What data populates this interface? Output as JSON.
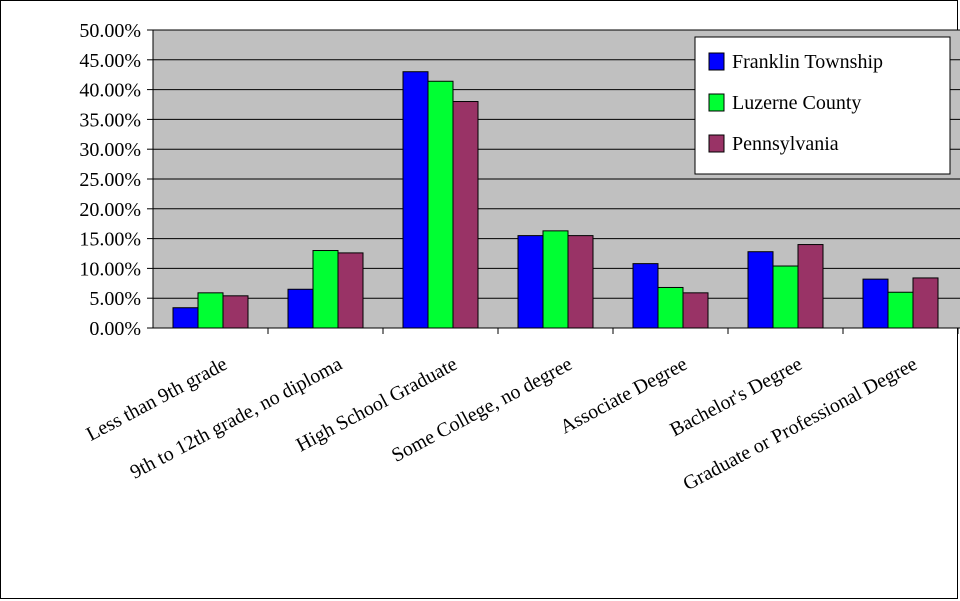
{
  "chart_data": {
    "type": "bar",
    "title": "",
    "xlabel": "",
    "ylabel": "",
    "ylim": [
      0,
      0.5
    ],
    "y_ticks": [
      "0.00%",
      "5.00%",
      "10.00%",
      "15.00%",
      "20.00%",
      "25.00%",
      "30.00%",
      "35.00%",
      "40.00%",
      "45.00%",
      "50.00%"
    ],
    "grid": true,
    "legend_position": "top-right",
    "categories": [
      "Less than 9th grade",
      "9th to 12th grade, no diploma",
      "High School Graduate",
      "Some College, no degree",
      "Associate Degree",
      "Bachelor's Degree",
      "Graduate or Professional Degree"
    ],
    "series": [
      {
        "name": "Franklin Township",
        "color": "#0000ff",
        "values": [
          0.034,
          0.065,
          0.43,
          0.155,
          0.108,
          0.128,
          0.082
        ]
      },
      {
        "name": "Luzerne County",
        "color": "#00ff33",
        "values": [
          0.059,
          0.13,
          0.414,
          0.163,
          0.068,
          0.104,
          0.06
        ]
      },
      {
        "name": "Pennsylvania",
        "color": "#993366",
        "values": [
          0.054,
          0.126,
          0.38,
          0.155,
          0.059,
          0.14,
          0.084
        ]
      }
    ],
    "plot_background": "#c0c0c0"
  }
}
